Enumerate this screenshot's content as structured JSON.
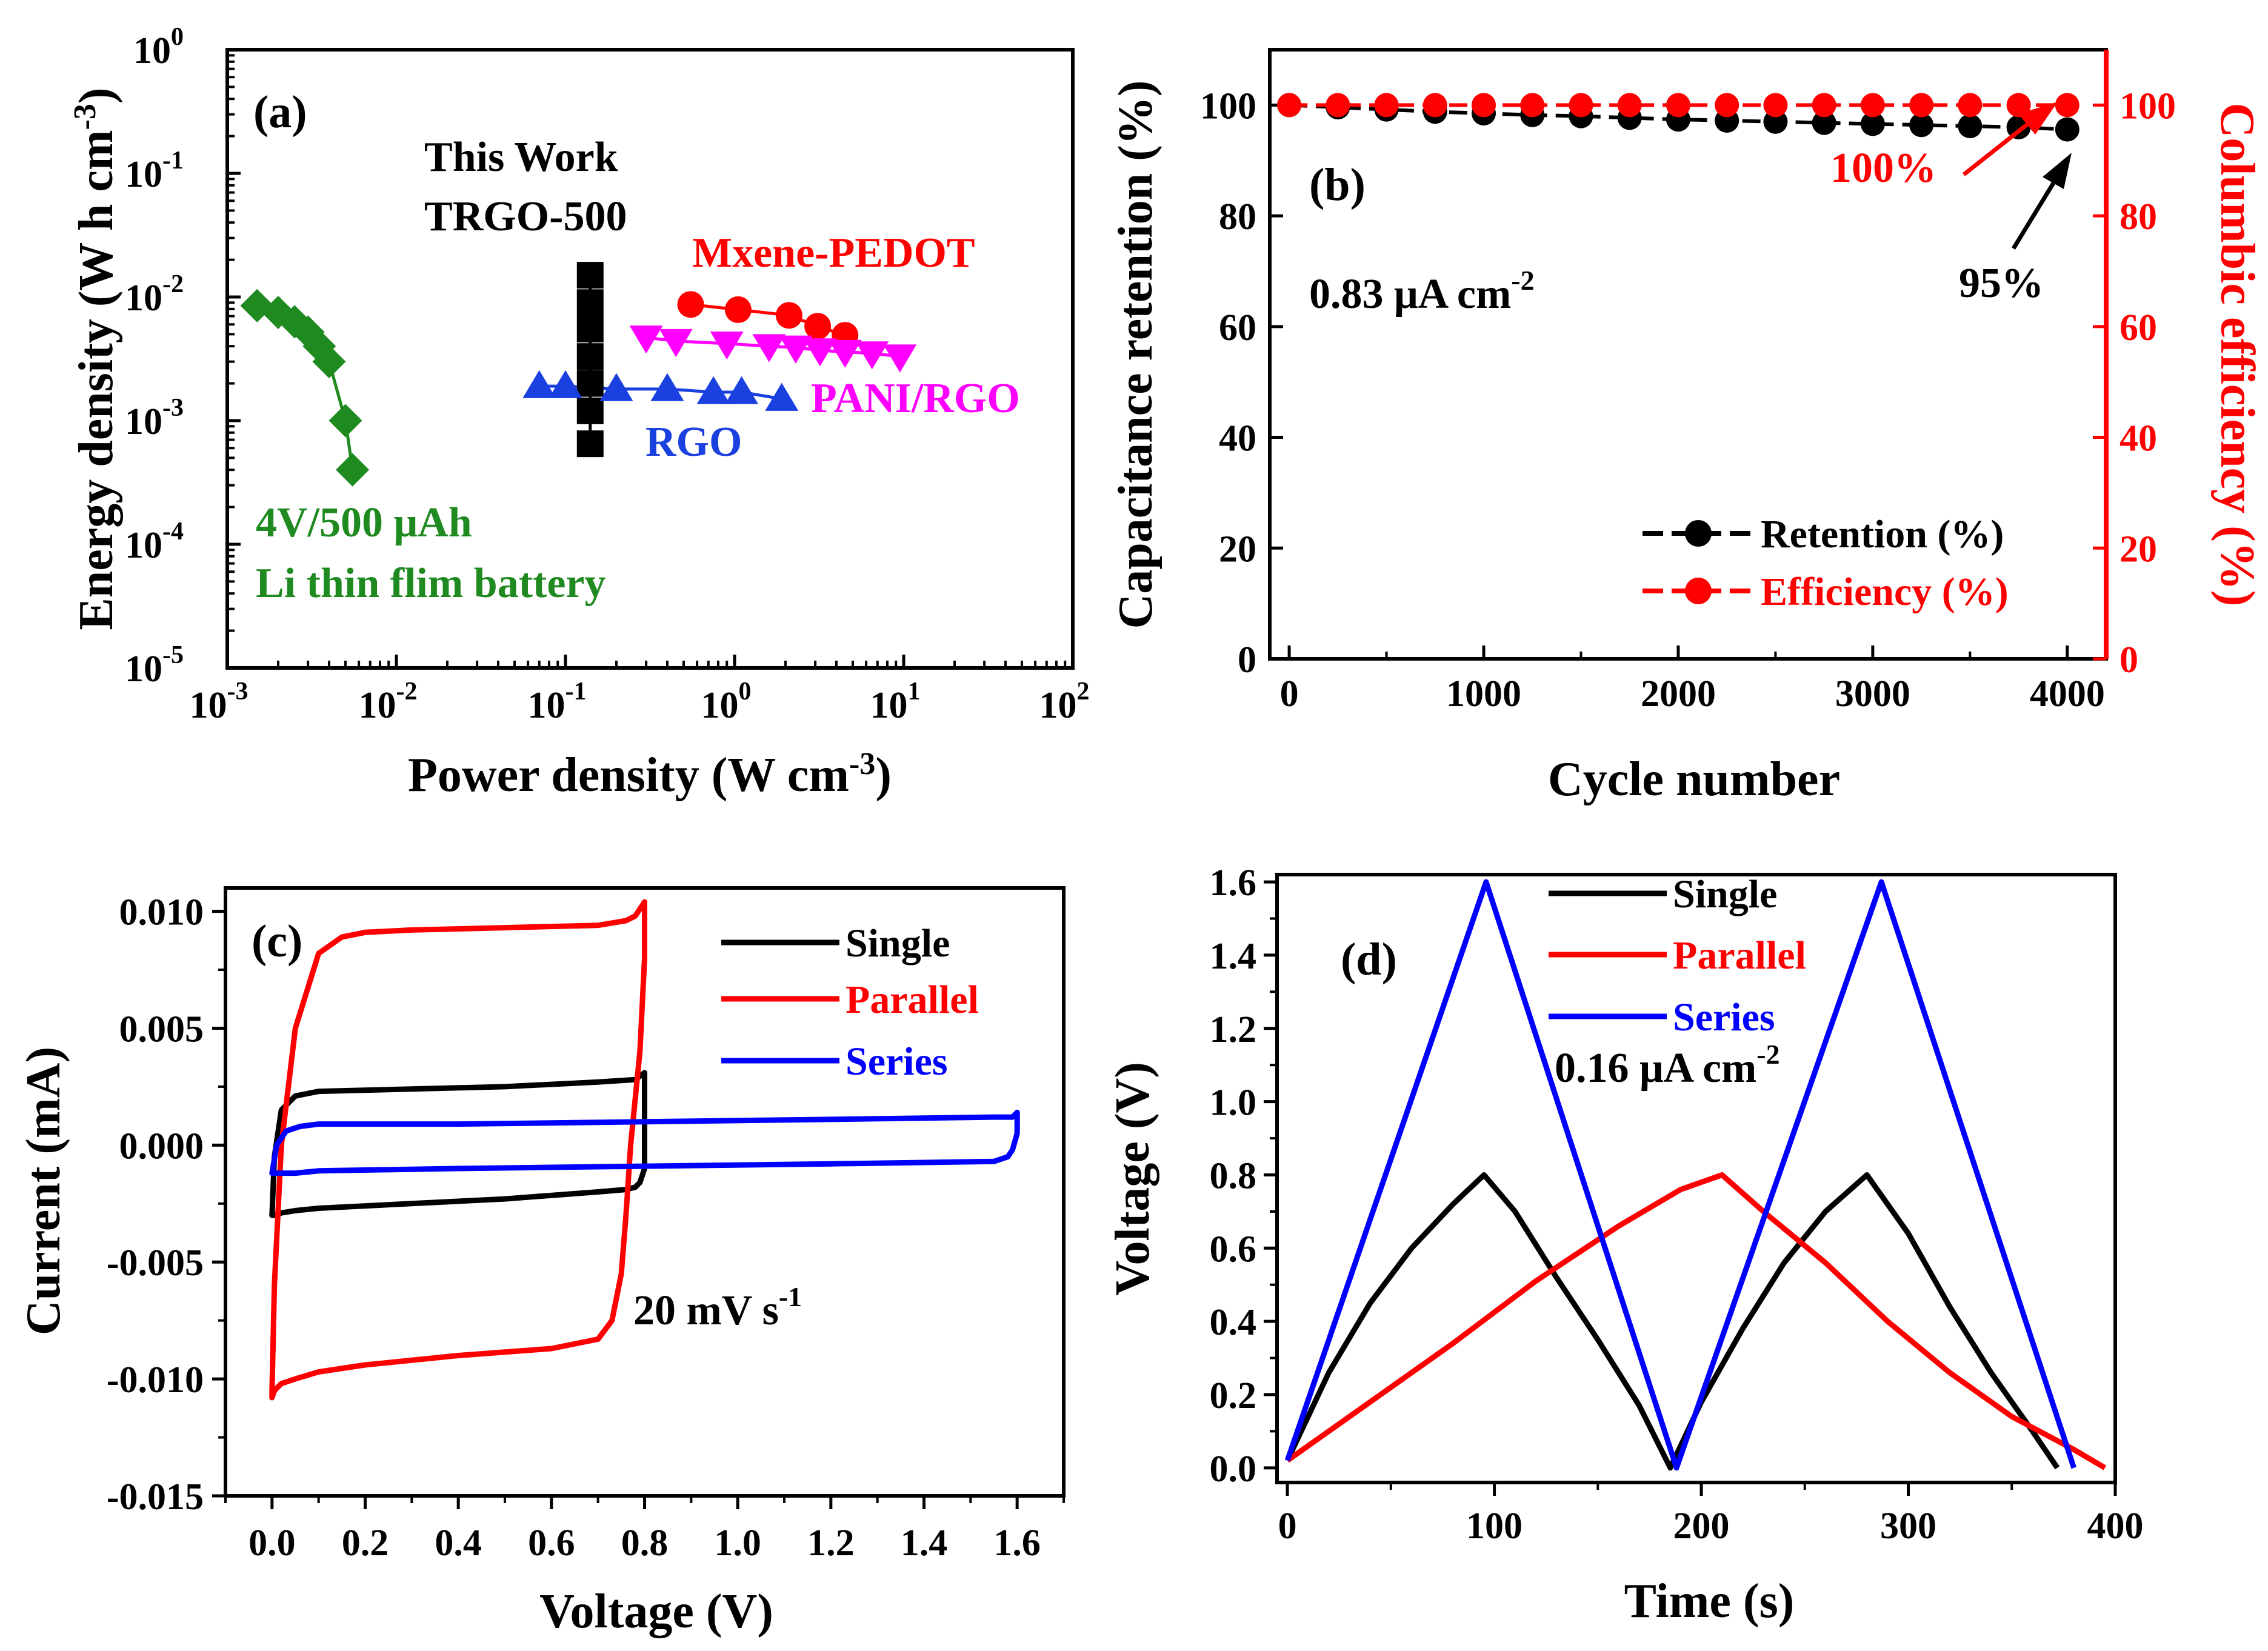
{
  "colors": {
    "black": "#000000",
    "red": "#ff0000",
    "blue": "#0000ff",
    "green": "#1f8a1f",
    "magenta": "#ff00ff",
    "blue2": "#1a40e0"
  },
  "chart_data": [
    {
      "id": "a",
      "type": "scatter",
      "panel_label": "(a)",
      "xlabel": "Power density (W cm-3)",
      "ylabel": "Energy density (W h cm-3)",
      "xscale": "log",
      "yscale": "log",
      "xlim": [
        0.001,
        100
      ],
      "ylim": [
        1e-05,
        1
      ],
      "x_ticks": [
        {
          "base": "10",
          "exp": "-3"
        },
        {
          "base": "10",
          "exp": "-2"
        },
        {
          "base": "10",
          "exp": "-1"
        },
        {
          "base": "10",
          "exp": "0"
        },
        {
          "base": "10",
          "exp": "1"
        },
        {
          "base": "10",
          "exp": "2"
        }
      ],
      "y_ticks": [
        {
          "base": "10",
          "exp": "-5"
        },
        {
          "base": "10",
          "exp": "-4"
        },
        {
          "base": "10",
          "exp": "-3"
        },
        {
          "base": "10",
          "exp": "-2"
        },
        {
          "base": "10",
          "exp": "-1"
        },
        {
          "base": "10",
          "exp": "0"
        }
      ],
      "series": [
        {
          "name": "4V/500 μAh Li thin flim battery",
          "color": "#1f8a1f",
          "marker": "diamond",
          "x": [
            0.0015,
            0.002,
            0.0025,
            0.003,
            0.0035,
            0.004,
            0.005,
            0.0055
          ],
          "y": [
            0.0085,
            0.0075,
            0.0063,
            0.0052,
            0.004,
            0.003,
            0.001,
            0.0004
          ]
        },
        {
          "name": "This Work TRGO-500",
          "color": "#000000",
          "marker": "square",
          "x": [
            0.14,
            0.14,
            0.14,
            0.14,
            0.14,
            0.14,
            0.14
          ],
          "y": [
            0.015,
            0.009,
            0.0055,
            0.0033,
            0.002,
            0.0012,
            0.00065
          ]
        },
        {
          "name": "Mxene-PEDOT",
          "color": "#ff0000",
          "marker": "circle",
          "x": [
            0.55,
            1.05,
            2.1,
            3.1,
            4.5
          ],
          "y": [
            0.0087,
            0.0079,
            0.0071,
            0.0058,
            0.0049
          ]
        },
        {
          "name": "PANI/RGO",
          "color": "#ff00ff",
          "marker": "triangle-down",
          "x": [
            0.3,
            0.45,
            0.9,
            1.6,
            2.3,
            3.2,
            4.5,
            6.5,
            9.5
          ],
          "y": [
            0.0047,
            0.0044,
            0.0042,
            0.004,
            0.0039,
            0.0037,
            0.0036,
            0.0035,
            0.0033
          ]
        },
        {
          "name": "RGO",
          "color": "#1a40e0",
          "marker": "triangle-up",
          "x": [
            0.07,
            0.1,
            0.2,
            0.4,
            0.75,
            1.1,
            1.9
          ],
          "y": [
            0.0019,
            0.0019,
            0.0018,
            0.0018,
            0.0017,
            0.0017,
            0.0015
          ]
        }
      ],
      "annotations": {
        "this_work_1": "This Work",
        "this_work_2": "TRGO-500",
        "mxene": "Mxene-PEDOT",
        "pani": "PANI/RGO",
        "rgo": "RGO",
        "li_1": "4V/500 μAh",
        "li_2": "Li thin flim battery"
      }
    },
    {
      "id": "b",
      "type": "line",
      "panel_label": "(b)",
      "xlabel": "Cycle number",
      "ylabel": "Capacitance retention (%)",
      "y2label": "Columbic efficiency (%)",
      "xlim": [
        -100,
        4200
      ],
      "ylim": [
        0,
        110
      ],
      "y2lim": [
        0,
        110
      ],
      "x_ticks": [
        0,
        1000,
        2000,
        3000,
        4000
      ],
      "y_ticks": [
        0,
        20,
        40,
        60,
        80,
        100
      ],
      "series": [
        {
          "name": "Retention (%)",
          "color": "#000000",
          "axis": "left",
          "x": [
            0,
            250,
            500,
            750,
            1000,
            1250,
            1500,
            1750,
            2000,
            2250,
            2500,
            2750,
            3000,
            3250,
            3500,
            3750,
            4000
          ],
          "y": [
            100,
            99.6,
            99.2,
            98.8,
            98.5,
            98.2,
            98,
            97.7,
            97.4,
            97.2,
            97,
            96.8,
            96.6,
            96.4,
            96.2,
            96,
            95.6
          ]
        },
        {
          "name": "Efficiency (%)",
          "color": "#ff0000",
          "axis": "right",
          "x": [
            0,
            250,
            500,
            750,
            1000,
            1250,
            1500,
            1750,
            2000,
            2250,
            2500,
            2750,
            3000,
            3250,
            3500,
            3750,
            4000
          ],
          "y": [
            100,
            100,
            100,
            100,
            100,
            100,
            100,
            100,
            100,
            100,
            100,
            100,
            100,
            100,
            100,
            100,
            100
          ]
        }
      ],
      "annotations": {
        "current": "0.83 μA cm",
        "current_exp": "-2",
        "eff_note": "100%",
        "ret_note": "95%"
      }
    },
    {
      "id": "c",
      "type": "line",
      "panel_label": "(c)",
      "xlabel": "Voltage (V)",
      "ylabel": "Current (mA)",
      "xlim": [
        -0.1,
        1.7
      ],
      "ylim": [
        -0.015,
        0.011
      ],
      "x_ticks": [
        "0.0",
        "0.2",
        "0.4",
        "0.6",
        "0.8",
        "1.0",
        "1.2",
        "1.4",
        "1.6"
      ],
      "y_ticks": [
        "-0.015",
        "-0.010",
        "-0.005",
        "0.000",
        "0.005",
        "0.010"
      ],
      "series": [
        {
          "name": "Single",
          "color": "#000000",
          "x": [
            0,
            0.005,
            0.02,
            0.05,
            0.1,
            0.3,
            0.5,
            0.7,
            0.78,
            0.8,
            0.8,
            0.8,
            0.79,
            0.78,
            0.76,
            0.7,
            0.5,
            0.3,
            0.1,
            0.05,
            0.02,
            0.005,
            0
          ],
          "y": [
            -0.003,
            -0.0005,
            0.0015,
            0.0021,
            0.0023,
            0.0024,
            0.0025,
            0.0027,
            0.0028,
            0.0031,
            0.001,
            -0.001,
            -0.0016,
            -0.0018,
            -0.0019,
            -0.002,
            -0.0023,
            -0.0025,
            -0.0027,
            -0.0028,
            -0.0029,
            -0.003,
            -0.003
          ]
        },
        {
          "name": "Parallel",
          "color": "#ff0000",
          "x": [
            0,
            0.005,
            0.02,
            0.05,
            0.1,
            0.15,
            0.2,
            0.3,
            0.5,
            0.7,
            0.76,
            0.78,
            0.8,
            0.8,
            0.79,
            0.77,
            0.76,
            0.75,
            0.73,
            0.7,
            0.6,
            0.4,
            0.2,
            0.1,
            0.05,
            0.02,
            0.005,
            0
          ],
          "y": [
            -0.0105,
            -0.006,
            0.0,
            0.005,
            0.0082,
            0.0089,
            0.0091,
            0.0092,
            0.0093,
            0.0094,
            0.0096,
            0.0098,
            0.0104,
            0.008,
            0.004,
            0.0,
            -0.003,
            -0.0055,
            -0.0075,
            -0.0083,
            -0.0087,
            -0.009,
            -0.0094,
            -0.0097,
            -0.01,
            -0.0102,
            -0.0105,
            -0.0108
          ]
        },
        {
          "name": "Series",
          "color": "#0000ff",
          "x": [
            0,
            0.01,
            0.03,
            0.06,
            0.1,
            0.4,
            0.8,
            1.2,
            1.55,
            1.59,
            1.6,
            1.6,
            1.59,
            1.58,
            1.55,
            1.2,
            0.8,
            0.4,
            0.1,
            0.05,
            0.02,
            0.005,
            0
          ],
          "y": [
            -0.0012,
            0,
            0.0006,
            0.0008,
            0.0009,
            0.0009,
            0.001,
            0.0011,
            0.0012,
            0.0012,
            0.0014,
            0.0005,
            -0.0002,
            -0.0005,
            -0.0007,
            -0.0008,
            -0.0009,
            -0.001,
            -0.0011,
            -0.0012,
            -0.0012,
            -0.0012,
            -0.0012
          ]
        }
      ],
      "annotations": {
        "scan_rate": "20 mV s",
        "scan_exp": "-1"
      }
    },
    {
      "id": "d",
      "type": "line",
      "panel_label": "(d)",
      "xlabel": "Time (s)",
      "ylabel": "Voltage (V)",
      "xlim": [
        -5,
        400
      ],
      "ylim": [
        -0.04,
        1.62
      ],
      "x_ticks": [
        0,
        100,
        200,
        300,
        400
      ],
      "y_ticks": [
        "0.0",
        "0.2",
        "0.4",
        "0.6",
        "0.8",
        "1.0",
        "1.2",
        "1.4",
        "1.6"
      ],
      "series": [
        {
          "name": "Single",
          "color": "#000000",
          "x": [
            0,
            20,
            40,
            60,
            80,
            95,
            110,
            130,
            150,
            170,
            185,
            200,
            220,
            240,
            260,
            280,
            300,
            320,
            340,
            360,
            372
          ],
          "y": [
            0.02,
            0.26,
            0.45,
            0.6,
            0.72,
            0.8,
            0.7,
            0.52,
            0.35,
            0.17,
            0.0,
            0.18,
            0.38,
            0.56,
            0.7,
            0.8,
            0.64,
            0.44,
            0.26,
            0.1,
            0.0
          ]
        },
        {
          "name": "Parallel",
          "color": "#ff0000",
          "x": [
            0,
            40,
            80,
            120,
            160,
            190,
            210,
            230,
            260,
            290,
            320,
            350,
            380,
            395
          ],
          "y": [
            0.02,
            0.18,
            0.34,
            0.51,
            0.66,
            0.76,
            0.8,
            0.7,
            0.56,
            0.4,
            0.26,
            0.14,
            0.05,
            0.0
          ]
        },
        {
          "name": "Series",
          "color": "#0000ff",
          "x": [
            0,
            96,
            188,
            287,
            380
          ],
          "y": [
            0.02,
            1.6,
            0.0,
            1.6,
            0.0
          ]
        }
      ],
      "annotations": {
        "current": "0.16 μA cm",
        "current_exp": "-2"
      }
    }
  ]
}
